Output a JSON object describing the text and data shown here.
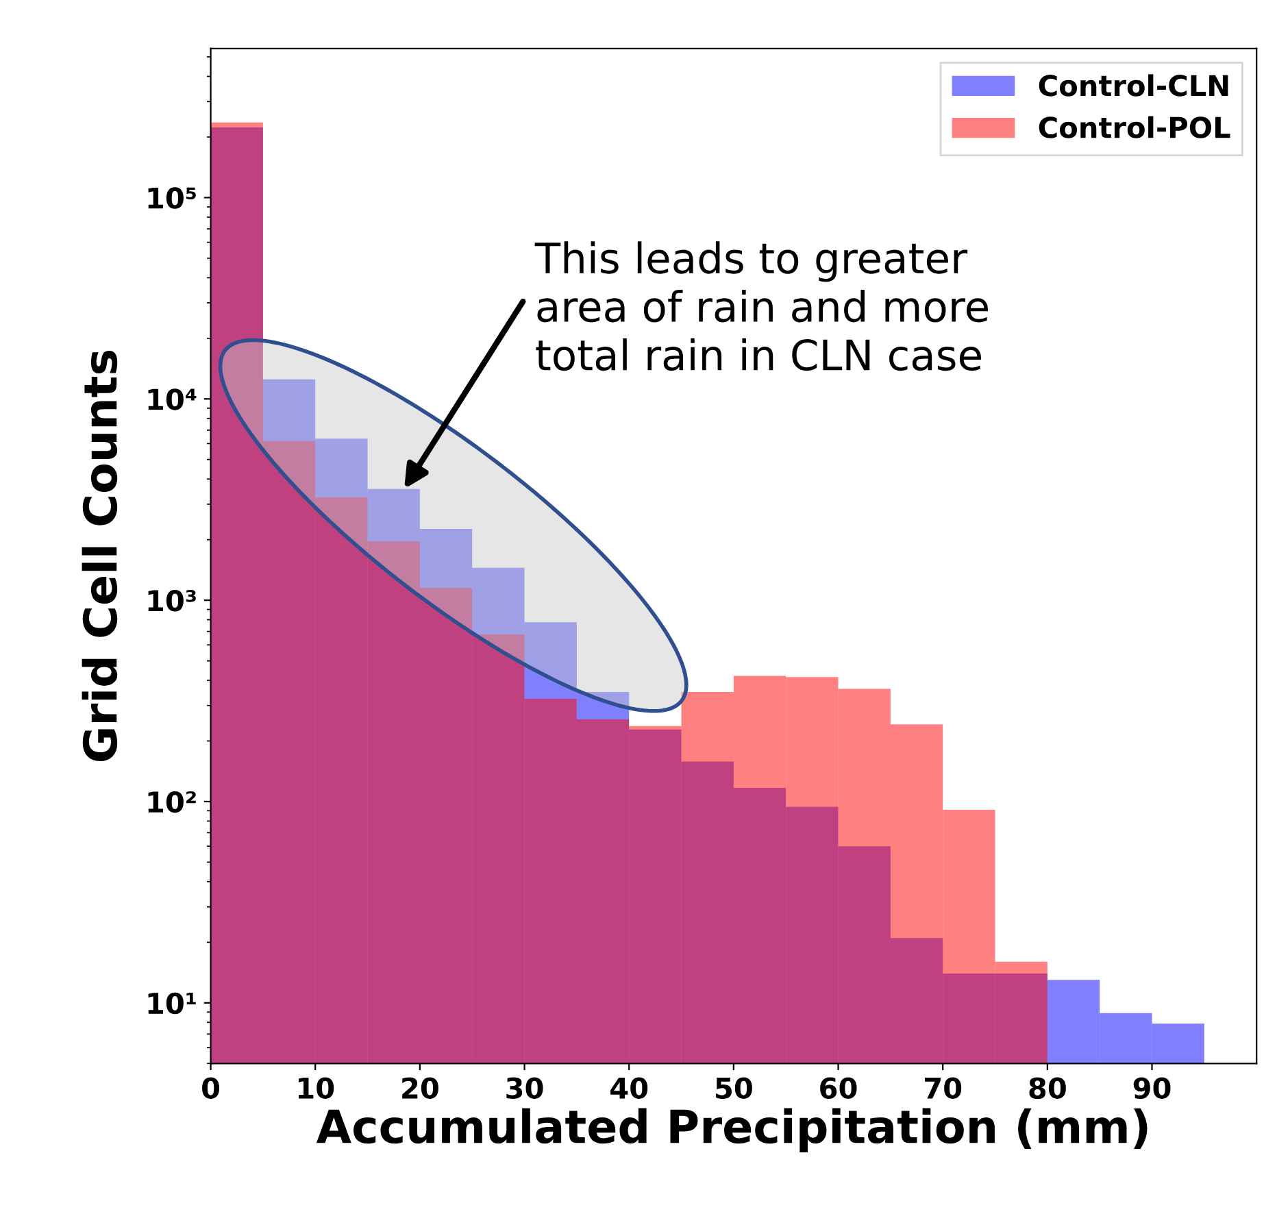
{
  "chart_data": {
    "type": "histogram",
    "xlabel": "Accumulated Precipitation (mm)",
    "ylabel": "Grid Cell Counts",
    "bins": [
      0,
      5,
      10,
      15,
      20,
      25,
      30,
      35,
      40,
      45,
      50,
      55,
      60,
      65,
      70,
      75,
      80,
      85,
      90,
      95
    ],
    "series": [
      {
        "name": "Control-CLN",
        "color": "#8080ff",
        "values": [
          223000,
          12500,
          6350,
          3570,
          2260,
          1450,
          778,
          350,
          228,
          158,
          117,
          94,
          60,
          21,
          14,
          14,
          13,
          8.9,
          7.9
        ]
      },
      {
        "name": "Control-POL",
        "color": "#ff8080",
        "values": [
          236000,
          6180,
          3240,
          1960,
          1150,
          676,
          324,
          256,
          237,
          350,
          421,
          415,
          363,
          242,
          91,
          16,
          null,
          null,
          null
        ]
      }
    ],
    "log": "y",
    "xlim": [
      0,
      100
    ],
    "xticks": [
      0,
      10,
      20,
      30,
      40,
      50,
      60,
      70,
      80,
      90
    ],
    "ylim": [
      5,
      550000
    ],
    "yticks": [
      {
        "value": 10,
        "label": "10¹"
      },
      {
        "value": 100,
        "label": "10²"
      },
      {
        "value": 1000,
        "label": "10³"
      },
      {
        "value": 10000,
        "label": "10⁴"
      },
      {
        "value": 100000,
        "label": "10⁵"
      }
    ],
    "legend": "top right",
    "grid": false,
    "annotations": [
      {
        "text": "This leads to greater\narea of rain and more\ntotal rain in CLN case",
        "x": 18.5,
        "y": 3570
      }
    ]
  }
}
